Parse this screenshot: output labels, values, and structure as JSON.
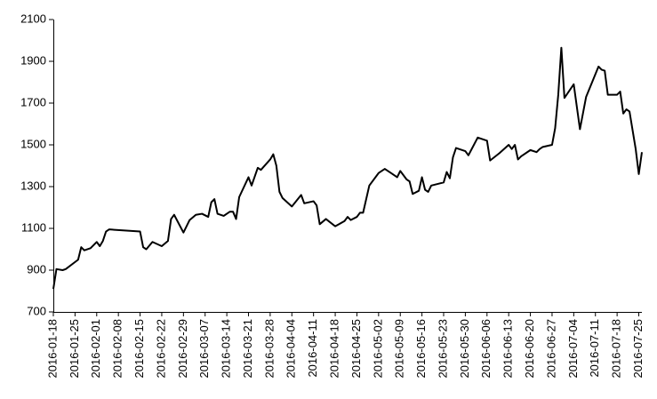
{
  "chart_data": {
    "type": "line",
    "color": "#000000",
    "grid": false,
    "xlim": [
      "2016-01-18",
      "2016-07-26"
    ],
    "xticks": [
      "2016-01-18",
      "2016-01-25",
      "2016-02-01",
      "2016-02-08",
      "2016-02-15",
      "2016-02-22",
      "2016-02-29",
      "2016-03-07",
      "2016-03-14",
      "2016-03-21",
      "2016-03-28",
      "2016-04-04",
      "2016-04-11",
      "2016-04-18",
      "2016-04-25",
      "2016-05-02",
      "2016-05-09",
      "2016-05-16",
      "2016-05-23",
      "2016-05-30",
      "2016-06-06",
      "2016-06-13",
      "2016-06-20",
      "2016-06-27",
      "2016-07-04",
      "2016-07-11",
      "2016-07-18",
      "2016-07-25"
    ],
    "ylim": [
      700,
      2100
    ],
    "yticks": [
      700,
      900,
      1100,
      1300,
      1500,
      1700,
      1900,
      2100
    ],
    "x": [
      "2016-01-18",
      "2016-01-19",
      "2016-01-21",
      "2016-01-22",
      "2016-01-26",
      "2016-01-27",
      "2016-01-28",
      "2016-01-30",
      "2016-02-01",
      "2016-02-02",
      "2016-02-03",
      "2016-02-04",
      "2016-02-05",
      "2016-02-15",
      "2016-02-16",
      "2016-02-17",
      "2016-02-19",
      "2016-02-22",
      "2016-02-24",
      "2016-02-25",
      "2016-02-26",
      "2016-02-29",
      "2016-03-02",
      "2016-03-04",
      "2016-03-06",
      "2016-03-08",
      "2016-03-09",
      "2016-03-10",
      "2016-03-11",
      "2016-03-13",
      "2016-03-15",
      "2016-03-16",
      "2016-03-17",
      "2016-03-18",
      "2016-03-21",
      "2016-03-22",
      "2016-03-24",
      "2016-03-25",
      "2016-03-28",
      "2016-03-29",
      "2016-03-30",
      "2016-03-31",
      "2016-04-01",
      "2016-04-04",
      "2016-04-07",
      "2016-04-08",
      "2016-04-11",
      "2016-04-12",
      "2016-04-13",
      "2016-04-15",
      "2016-04-18",
      "2016-04-21",
      "2016-04-22",
      "2016-04-23",
      "2016-04-25",
      "2016-04-26",
      "2016-04-27",
      "2016-04-29",
      "2016-05-02",
      "2016-05-04",
      "2016-05-06",
      "2016-05-08",
      "2016-05-09",
      "2016-05-11",
      "2016-05-12",
      "2016-05-13",
      "2016-05-15",
      "2016-05-16",
      "2016-05-17",
      "2016-05-18",
      "2016-05-19",
      "2016-05-23",
      "2016-05-24",
      "2016-05-25",
      "2016-05-26",
      "2016-05-27",
      "2016-05-30",
      "2016-05-31",
      "2016-06-03",
      "2016-06-06",
      "2016-06-07",
      "2016-06-10",
      "2016-06-13",
      "2016-06-14",
      "2016-06-15",
      "2016-06-16",
      "2016-06-17",
      "2016-06-20",
      "2016-06-22",
      "2016-06-23",
      "2016-06-24",
      "2016-06-27",
      "2016-06-28",
      "2016-06-29",
      "2016-06-30",
      "2016-07-01",
      "2016-07-04",
      "2016-07-06",
      "2016-07-08",
      "2016-07-12",
      "2016-07-13",
      "2016-07-14",
      "2016-07-15",
      "2016-07-18",
      "2016-07-19",
      "2016-07-20",
      "2016-07-21",
      "2016-07-22",
      "2016-07-24",
      "2016-07-25",
      "2016-07-26"
    ],
    "values": [
      810,
      905,
      900,
      905,
      950,
      1010,
      995,
      1005,
      1035,
      1015,
      1040,
      1085,
      1095,
      1085,
      1010,
      1000,
      1035,
      1015,
      1040,
      1145,
      1165,
      1080,
      1140,
      1165,
      1170,
      1155,
      1225,
      1240,
      1170,
      1160,
      1180,
      1180,
      1145,
      1250,
      1345,
      1305,
      1390,
      1380,
      1430,
      1455,
      1400,
      1275,
      1245,
      1205,
      1260,
      1220,
      1230,
      1210,
      1120,
      1145,
      1110,
      1135,
      1155,
      1140,
      1155,
      1175,
      1175,
      1305,
      1365,
      1385,
      1365,
      1345,
      1375,
      1335,
      1325,
      1265,
      1280,
      1345,
      1285,
      1275,
      1305,
      1320,
      1370,
      1340,
      1440,
      1485,
      1470,
      1450,
      1535,
      1520,
      1425,
      1460,
      1500,
      1480,
      1500,
      1430,
      1445,
      1475,
      1465,
      1480,
      1490,
      1500,
      1580,
      1740,
      1965,
      1725,
      1790,
      1575,
      1730,
      1875,
      1860,
      1855,
      1740,
      1740,
      1755,
      1650,
      1670,
      1660,
      1480,
      1360,
      1465
    ]
  }
}
